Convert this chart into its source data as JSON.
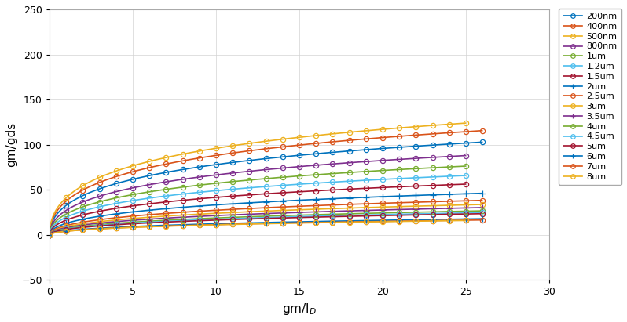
{
  "title": "",
  "xlabel": "gm/I$_D$",
  "ylabel": "gm/gds",
  "xlim": [
    0,
    30
  ],
  "ylim": [
    -50,
    250
  ],
  "xticks": [
    0,
    5,
    10,
    15,
    20,
    25,
    30
  ],
  "yticks": [
    -50,
    0,
    50,
    100,
    150,
    200,
    250
  ],
  "background_color": "#FFFFFF",
  "grid_color": "#D3D3D3",
  "series": [
    {
      "label": "200nm",
      "color": "#0072BD",
      "marker": "o",
      "A": 215,
      "k": 0.18,
      "x_end": 26
    },
    {
      "label": "400nm",
      "color": "#D95319",
      "marker": "o",
      "A": 235,
      "k": 0.19,
      "x_end": 26
    },
    {
      "label": "500nm",
      "color": "#EDB120",
      "marker": "o",
      "A": 248,
      "k": 0.2,
      "x_end": 25
    },
    {
      "label": "800nm",
      "color": "#7E2F8E",
      "marker": "o",
      "A": 198,
      "k": 0.16,
      "x_end": 25
    },
    {
      "label": "1um",
      "color": "#77AC30",
      "marker": "o",
      "A": 178,
      "k": 0.15,
      "x_end": 25
    },
    {
      "label": "1.2um",
      "color": "#4DBEEE",
      "marker": "o",
      "A": 160,
      "k": 0.14,
      "x_end": 25
    },
    {
      "label": "1.5um",
      "color": "#A2142F",
      "marker": "o",
      "A": 143,
      "k": 0.13,
      "x_end": 25
    },
    {
      "label": "2um",
      "color": "#0072BD",
      "marker": "+",
      "A": 125,
      "k": 0.115,
      "x_end": 26
    },
    {
      "label": "2.5um",
      "color": "#D95319",
      "marker": "o",
      "A": 110,
      "k": 0.105,
      "x_end": 26
    },
    {
      "label": "3um",
      "color": "#EDB120",
      "marker": "o",
      "A": 100,
      "k": 0.1,
      "x_end": 26
    },
    {
      "label": "3.5um",
      "color": "#7E2F8E",
      "marker": "+",
      "A": 93,
      "k": 0.095,
      "x_end": 26
    },
    {
      "label": "4um",
      "color": "#77AC30",
      "marker": "o",
      "A": 85,
      "k": 0.09,
      "x_end": 26
    },
    {
      "label": "4.5um",
      "color": "#4DBEEE",
      "marker": "o",
      "A": 80,
      "k": 0.088,
      "x_end": 26
    },
    {
      "label": "5um",
      "color": "#A2142F",
      "marker": "o",
      "A": 78,
      "k": 0.085,
      "x_end": 26
    },
    {
      "label": "6um",
      "color": "#0072BD",
      "marker": "+",
      "A": 65,
      "k": 0.075,
      "x_end": 26
    },
    {
      "label": "7um",
      "color": "#D95319",
      "marker": "o",
      "A": 62,
      "k": 0.072,
      "x_end": 26
    },
    {
      "label": "8um",
      "color": "#EDB120",
      "marker": "o",
      "A": 62,
      "k": 0.07,
      "x_end": 25
    }
  ]
}
